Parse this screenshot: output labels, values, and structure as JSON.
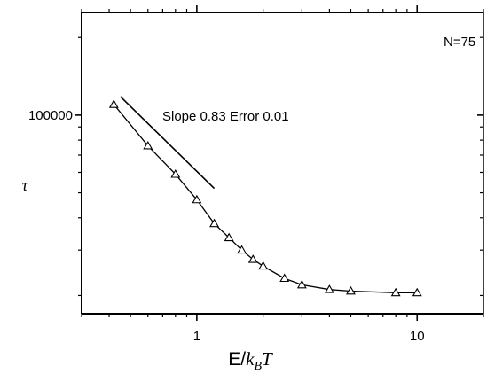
{
  "chart_data": {
    "type": "line",
    "title": "",
    "xscale": "log",
    "yscale": "log",
    "xlim": [
      0.3,
      20
    ],
    "ylim": [
      17000,
      250000
    ],
    "xticks": [
      1,
      10
    ],
    "xtick_labels": [
      "1",
      "10"
    ],
    "yticks": [
      100000
    ],
    "ytick_labels": [
      "100000"
    ],
    "xlabel": {
      "main": "E/",
      "k": "k",
      "sub": "B",
      "T": "T"
    },
    "ylabel": "τ",
    "annotation_n": "N=75",
    "annotation_slope": "Slope 0.83 Error 0.01",
    "grid": false,
    "series": [
      {
        "marker": "triangle-open",
        "x": [
          0.42,
          0.6,
          0.8,
          1.0,
          1.2,
          1.4,
          1.6,
          1.8,
          2.0,
          2.5,
          3.0,
          4.0,
          5.0,
          8.0,
          10.0
        ],
        "y": [
          110000,
          76000,
          59000,
          47000,
          38000,
          33500,
          30000,
          27600,
          26000,
          23300,
          22000,
          21100,
          20800,
          20500,
          20500
        ]
      }
    ],
    "fit_line": {
      "x": [
        0.45,
        1.2
      ],
      "y": [
        118000,
        52000
      ]
    }
  }
}
